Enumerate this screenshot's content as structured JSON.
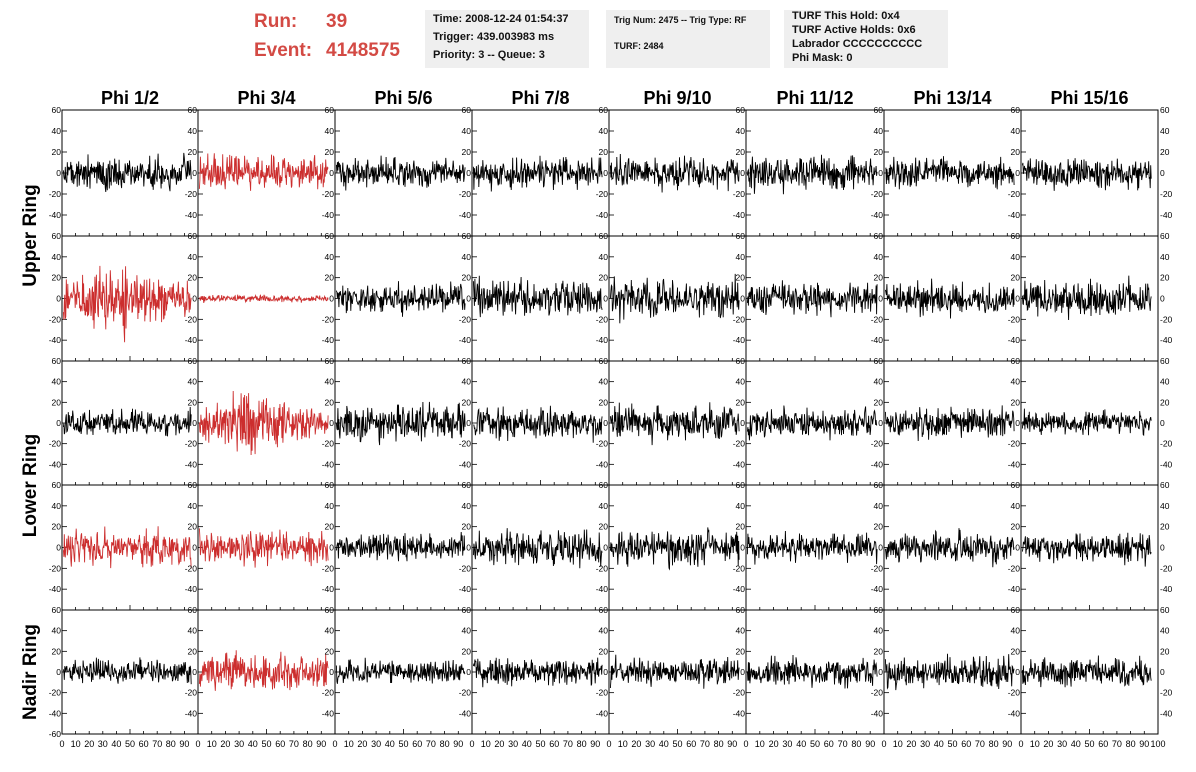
{
  "header": {
    "run_label": "Run:",
    "run_value": "39",
    "event_label": "Event:",
    "event_value": "4148575",
    "box1": [
      "Time: 2008-12-24 01:54:37",
      "Trigger: 439.003983 ms",
      "Priority: 3 -- Queue: 3"
    ],
    "box2": [
      "Trig Num: 2475 -- Trig Type: RF",
      "TURF: 2484"
    ],
    "box3": [
      "TURF This Hold: 0x4",
      "TURF Active Holds: 0x6",
      "Labrador CCCCCCCCCC",
      "Phi Mask: 0"
    ]
  },
  "colors": {
    "highlight": "#cc2e2e",
    "normal": "#000000",
    "header_text": "#d34a44",
    "box_bg": "#efefef"
  },
  "chart_data": {
    "type": "line",
    "columns": [
      "Phi 1/2",
      "Phi 3/4",
      "Phi 5/6",
      "Phi 7/8",
      "Phi 9/10",
      "Phi 11/12",
      "Phi 13/14",
      "Phi 15/16"
    ],
    "ring_labels": [
      "Upper Ring",
      "Lower Ring",
      "Nadir Ring"
    ],
    "xlim": [
      0,
      100
    ],
    "ylim": [
      -60,
      60
    ],
    "x_ticks": [
      "0",
      "10",
      "20",
      "30",
      "40",
      "50",
      "60",
      "70",
      "80",
      "90",
      "100"
    ],
    "y_ticks": [
      "-40",
      "-20",
      "0",
      "20",
      "40",
      "60"
    ],
    "bottom_tick_labels": [
      "-60"
    ],
    "rows": [
      {
        "ring": "Upper Ring",
        "highlighted": [
          false,
          true,
          false,
          false,
          false,
          false,
          false,
          false
        ],
        "amplitude": [
          18,
          20,
          18,
          18,
          18,
          20,
          18,
          18
        ]
      },
      {
        "ring": "Upper Ring",
        "highlighted": [
          true,
          true,
          false,
          false,
          false,
          false,
          false,
          false
        ],
        "amplitude": [
          32,
          4,
          18,
          22,
          22,
          18,
          18,
          20
        ]
      },
      {
        "ring": "Lower Ring",
        "highlighted": [
          false,
          true,
          false,
          false,
          false,
          false,
          false,
          false
        ],
        "amplitude": [
          16,
          28,
          22,
          18,
          22,
          18,
          18,
          14
        ]
      },
      {
        "ring": "Lower Ring",
        "highlighted": [
          true,
          true,
          false,
          false,
          false,
          false,
          false,
          false
        ],
        "amplitude": [
          22,
          20,
          16,
          20,
          20,
          16,
          18,
          18
        ]
      },
      {
        "ring": "Nadir Ring",
        "highlighted": [
          false,
          true,
          false,
          false,
          false,
          false,
          false,
          false
        ],
        "amplitude": [
          14,
          22,
          14,
          16,
          16,
          16,
          18,
          16
        ]
      }
    ]
  }
}
